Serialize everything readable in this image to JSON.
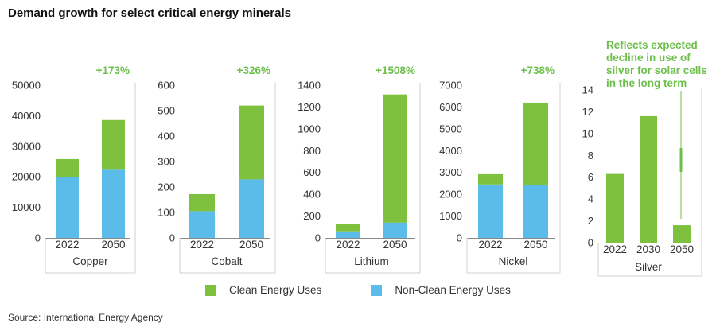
{
  "title": "Demand growth for select critical energy minerals",
  "source": "Source: International Energy Agency",
  "legend": {
    "clean": "Clean Energy Uses",
    "nonclean": "Non-Clean Energy Uses"
  },
  "colors": {
    "clean": "#7dc13e",
    "nonclean": "#5bbcea",
    "growth_text": "#6cc04a",
    "axis": "#888888",
    "frame": "#d0d0d0"
  },
  "chart_data": [
    {
      "type": "bar",
      "stacked": true,
      "title": "Copper",
      "categories": [
        "2022",
        "2050"
      ],
      "series": [
        {
          "name": "Non-Clean Energy Uses",
          "values": [
            19800,
            22300
          ]
        },
        {
          "name": "Clean Energy Uses",
          "values": [
            6000,
            16300
          ]
        }
      ],
      "yticks": [
        "0",
        "10000",
        "20000",
        "30000",
        "40000",
        "50000"
      ],
      "ylim": [
        0,
        50000
      ],
      "growth_label": "+173%"
    },
    {
      "type": "bar",
      "stacked": true,
      "title": "Cobalt",
      "categories": [
        "2022",
        "2050"
      ],
      "series": [
        {
          "name": "Non-Clean Energy Uses",
          "values": [
            105,
            230
          ]
        },
        {
          "name": "Clean Energy Uses",
          "values": [
            67,
            290
          ]
        }
      ],
      "yticks": [
        "0",
        "100",
        "200",
        "300",
        "400",
        "500",
        "600"
      ],
      "ylim": [
        0,
        600
      ],
      "growth_label": "+326%"
    },
    {
      "type": "bar",
      "stacked": true,
      "title": "Lithium",
      "categories": [
        "2022",
        "2050"
      ],
      "series": [
        {
          "name": "Non-Clean Energy Uses",
          "values": [
            60,
            140
          ]
        },
        {
          "name": "Clean Energy Uses",
          "values": [
            70,
            1175
          ]
        }
      ],
      "yticks": [
        "0",
        "200",
        "400",
        "600",
        "800",
        "1000",
        "1200",
        "1400"
      ],
      "ylim": [
        0,
        1400
      ],
      "growth_label": "+1508%"
    },
    {
      "type": "bar",
      "stacked": true,
      "title": "Nickel",
      "categories": [
        "2022",
        "2050"
      ],
      "series": [
        {
          "name": "Non-Clean Energy Uses",
          "values": [
            2450,
            2420
          ]
        },
        {
          "name": "Clean Energy Uses",
          "values": [
            470,
            3780
          ]
        }
      ],
      "yticks": [
        "0",
        "1000",
        "2000",
        "3000",
        "4000",
        "5000",
        "6000",
        "7000"
      ],
      "ylim": [
        0,
        7000
      ],
      "growth_label": "+738%"
    },
    {
      "type": "bar",
      "stacked": true,
      "title": "Silver",
      "categories": [
        "2022",
        "2030",
        "2050"
      ],
      "series": [
        {
          "name": "Clean Energy Uses",
          "values": [
            6.3,
            11.6,
            1.6
          ]
        }
      ],
      "yticks": [
        "0",
        "2",
        "4",
        "6",
        "8",
        "10",
        "12",
        "14"
      ],
      "ylim": [
        0,
        14
      ],
      "annotation": "Reflects expected decline in use of silver for solar cells in the long term"
    }
  ]
}
